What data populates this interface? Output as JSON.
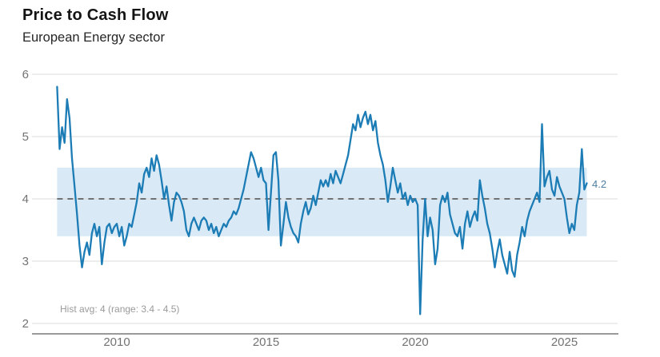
{
  "header": {
    "title": "Price to Cash Flow",
    "subtitle": "European Energy sector"
  },
  "chart_data": {
    "type": "line",
    "title": "Price to Cash Flow",
    "subtitle": "European Energy sector",
    "xlabel": "",
    "ylabel": "",
    "ylim": [
      2,
      6
    ],
    "yticks": [
      2,
      3,
      4,
      5,
      6
    ],
    "xticks": [
      2010,
      2015,
      2020,
      2025
    ],
    "grid": true,
    "legend": false,
    "hist_avg": 4,
    "hist_range": [
      3.4,
      4.5
    ],
    "note": "Hist avg: 4 (range: 3.4 - 4.5)",
    "last_value": 4.2,
    "last_value_label": "4.2",
    "series": [
      {
        "name": "Price to Cash Flow — European Energy sector",
        "x_start": 2008.0,
        "x_step_years": 0.0833333,
        "values": [
          5.8,
          4.8,
          5.15,
          4.9,
          5.6,
          5.3,
          4.65,
          4.2,
          3.75,
          3.25,
          2.9,
          3.15,
          3.3,
          3.1,
          3.45,
          3.6,
          3.4,
          3.55,
          2.95,
          3.3,
          3.55,
          3.6,
          3.45,
          3.55,
          3.6,
          3.4,
          3.55,
          3.25,
          3.4,
          3.6,
          3.55,
          3.75,
          3.95,
          4.25,
          4.1,
          4.4,
          4.5,
          4.35,
          4.65,
          4.45,
          4.7,
          4.55,
          4.3,
          4.0,
          4.2,
          3.9,
          3.65,
          3.95,
          4.1,
          4.05,
          3.95,
          3.8,
          3.5,
          3.4,
          3.6,
          3.7,
          3.6,
          3.5,
          3.65,
          3.7,
          3.65,
          3.5,
          3.6,
          3.45,
          3.55,
          3.4,
          3.5,
          3.6,
          3.55,
          3.65,
          3.7,
          3.8,
          3.75,
          3.85,
          4.0,
          4.15,
          4.35,
          4.55,
          4.75,
          4.65,
          4.5,
          4.35,
          4.5,
          4.3,
          4.25,
          3.5,
          4.1,
          4.7,
          4.75,
          4.3,
          3.25,
          3.6,
          3.95,
          3.7,
          3.55,
          3.45,
          3.4,
          3.3,
          3.6,
          3.8,
          3.95,
          3.75,
          3.85,
          4.05,
          3.9,
          4.1,
          4.3,
          4.2,
          4.3,
          4.2,
          4.4,
          4.25,
          4.45,
          4.35,
          4.25,
          4.4,
          4.55,
          4.7,
          4.95,
          5.2,
          5.1,
          5.35,
          5.15,
          5.3,
          5.4,
          5.2,
          5.35,
          5.1,
          5.25,
          4.9,
          4.7,
          4.55,
          4.3,
          3.95,
          4.2,
          4.5,
          4.3,
          4.1,
          4.25,
          4.0,
          4.1,
          3.9,
          4.05,
          3.95,
          4.0,
          3.9,
          2.15,
          3.35,
          4.0,
          3.4,
          3.7,
          3.5,
          2.95,
          3.2,
          3.9,
          4.05,
          3.95,
          4.1,
          3.75,
          3.6,
          3.45,
          3.4,
          3.55,
          3.2,
          3.6,
          3.8,
          3.55,
          3.7,
          3.8,
          3.65,
          4.3,
          4.05,
          3.85,
          3.6,
          3.45,
          3.2,
          2.9,
          3.15,
          3.35,
          3.1,
          2.95,
          2.8,
          3.15,
          2.85,
          2.75,
          3.1,
          3.3,
          3.55,
          3.4,
          3.65,
          3.8,
          3.9,
          4.0,
          4.1,
          3.95,
          5.2,
          4.2,
          4.35,
          4.45,
          4.15,
          4.05,
          4.35,
          4.2,
          4.1,
          4.0,
          3.7,
          3.45,
          3.6,
          3.5,
          3.9,
          4.1,
          4.8,
          4.15,
          4.25
        ]
      }
    ],
    "colors": {
      "line": "#1c7cb5",
      "band": "#d9e9f5",
      "avg_line": "#4a4a4a",
      "grid": "#dbdbdb",
      "axis": "#8c8c8c",
      "tick_label": "#737373",
      "note": "#9a9a9a",
      "last_value": "#4d7fa3"
    }
  }
}
